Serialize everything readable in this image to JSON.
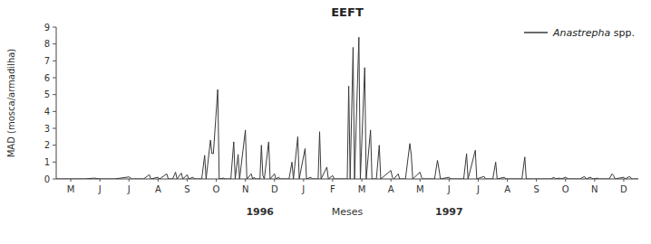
{
  "chart_data": {
    "type": "line",
    "title": "EEFT",
    "ylabel": "MAD (mosca/armadilha)",
    "xlabel": "Meses",
    "annotations": [
      {
        "text": "1996",
        "x": 7.0
      },
      {
        "text": "1997",
        "x": 13.5
      }
    ],
    "xlim": [
      0,
      20
    ],
    "xticks": [
      {
        "value": 0.5,
        "label": "M"
      },
      {
        "value": 1.5,
        "label": "J"
      },
      {
        "value": 2.5,
        "label": "J"
      },
      {
        "value": 3.5,
        "label": "A"
      },
      {
        "value": 4.5,
        "label": "S"
      },
      {
        "value": 5.5,
        "label": "O"
      },
      {
        "value": 6.5,
        "label": "N"
      },
      {
        "value": 7.5,
        "label": "D"
      },
      {
        "value": 8.5,
        "label": "J"
      },
      {
        "value": 9.5,
        "label": "F"
      },
      {
        "value": 10.5,
        "label": "M"
      },
      {
        "value": 11.5,
        "label": "A"
      },
      {
        "value": 12.5,
        "label": "M"
      },
      {
        "value": 13.5,
        "label": "J"
      },
      {
        "value": 14.5,
        "label": "J"
      },
      {
        "value": 15.5,
        "label": "A"
      },
      {
        "value": 16.5,
        "label": "S"
      },
      {
        "value": 17.5,
        "label": "O"
      },
      {
        "value": 18.5,
        "label": "N"
      },
      {
        "value": 19.5,
        "label": "D"
      }
    ],
    "ylim": [
      0,
      9
    ],
    "yticks": [
      0,
      1,
      2,
      3,
      4,
      5,
      6,
      7,
      8,
      9
    ],
    "grid": false,
    "legend": "upper right",
    "x": [
      0.0,
      0.5,
      1.0,
      1.3,
      1.5,
      2.0,
      2.5,
      2.6,
      3.0,
      3.2,
      3.25,
      3.5,
      3.55,
      3.8,
      3.85,
      4.0,
      4.1,
      4.15,
      4.3,
      4.35,
      4.5,
      4.55,
      4.7,
      4.75,
      5.0,
      5.1,
      5.15,
      5.3,
      5.35,
      5.4,
      5.55,
      5.6,
      5.75,
      5.8,
      6.0,
      6.1,
      6.15,
      6.25,
      6.3,
      6.5,
      6.55,
      6.7,
      6.75,
      6.8,
      6.85,
      7.0,
      7.05,
      7.1,
      7.15,
      7.3,
      7.35,
      7.5,
      7.55,
      7.65,
      7.7,
      8.0,
      8.1,
      8.15,
      8.3,
      8.35,
      8.55,
      8.6,
      8.75,
      8.8,
      9.0,
      9.05,
      9.1,
      9.3,
      9.35,
      9.5,
      9.55,
      10.0,
      10.05,
      10.1,
      10.2,
      10.25,
      10.4,
      10.45,
      10.6,
      10.65,
      10.8,
      10.85,
      11.0,
      11.1,
      11.15,
      11.5,
      11.55,
      11.6,
      11.75,
      11.8,
      12.0,
      12.15,
      12.2,
      12.25,
      12.5,
      12.55,
      12.6,
      13.0,
      13.1,
      13.15,
      13.2,
      13.5,
      13.55,
      14.0,
      14.1,
      14.15,
      14.4,
      14.45,
      14.7,
      14.75,
      15.0,
      15.1,
      15.15,
      15.4,
      15.45,
      16.0,
      16.1,
      16.15,
      17.0,
      17.1,
      17.15,
      17.3,
      17.35,
      17.5,
      17.55,
      17.6,
      18.0,
      18.15,
      18.2,
      18.35,
      18.4,
      18.45,
      18.6,
      18.65,
      19.0,
      19.1,
      19.15,
      19.2,
      19.5,
      19.55,
      19.7,
      19.75,
      19.8,
      20.0
    ],
    "series": [
      {
        "name": "Anastrepha spp.",
        "color": "#3a3a3a",
        "values": [
          0.0,
          0.0,
          0.0,
          0.05,
          0.0,
          0.0,
          0.12,
          0.0,
          0.0,
          0.25,
          0.0,
          0.1,
          0.0,
          0.3,
          0.0,
          0.0,
          0.4,
          0.0,
          0.35,
          0.0,
          0.25,
          0.0,
          0.1,
          0.0,
          0.0,
          1.4,
          0.0,
          2.3,
          1.5,
          1.5,
          5.3,
          0.0,
          0.05,
          0.0,
          0.0,
          2.2,
          0.0,
          1.45,
          0.0,
          2.9,
          0.0,
          0.3,
          0.0,
          0.1,
          0.0,
          0.0,
          2.0,
          0.2,
          0.0,
          2.2,
          0.0,
          0.3,
          0.0,
          0.1,
          0.0,
          0.0,
          1.0,
          0.0,
          2.5,
          0.0,
          1.8,
          0.0,
          0.1,
          0.0,
          0.0,
          2.8,
          0.0,
          0.7,
          0.0,
          0.2,
          0.0,
          0.0,
          5.5,
          0.0,
          7.8,
          0.0,
          8.4,
          0.0,
          6.6,
          0.0,
          2.9,
          0.0,
          0.0,
          2.0,
          0.0,
          0.5,
          0.1,
          0.0,
          0.3,
          0.0,
          0.0,
          2.1,
          1.4,
          0.0,
          0.4,
          0.1,
          0.0,
          0.0,
          1.1,
          0.6,
          0.0,
          0.1,
          0.0,
          0.0,
          1.5,
          0.0,
          1.7,
          0.0,
          0.15,
          0.0,
          0.0,
          1.0,
          0.0,
          0.1,
          0.0,
          0.0,
          1.3,
          0.0,
          0.0,
          0.1,
          0.0,
          0.05,
          0.0,
          0.1,
          0.05,
          0.0,
          0.0,
          0.15,
          0.0,
          0.1,
          0.05,
          0.0,
          0.05,
          0.0,
          0.0,
          0.3,
          0.2,
          0.0,
          0.1,
          0.0,
          0.15,
          0.05,
          0.0,
          0.0
        ]
      }
    ]
  }
}
